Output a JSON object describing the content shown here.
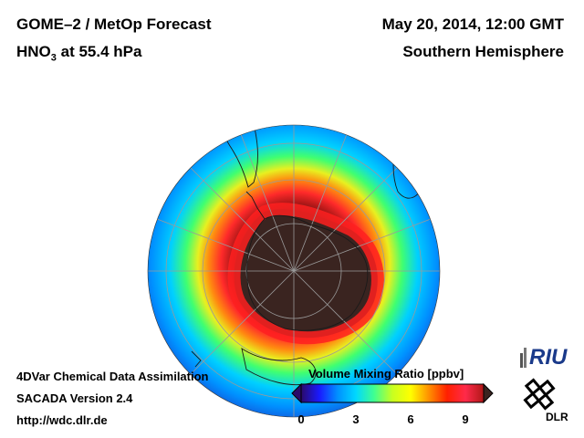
{
  "header": {
    "product": "GOME–2 / MetOp Forecast",
    "species_main": "HNO",
    "species_sub": "3",
    "species_level": " at 55.4 hPa",
    "datetime": "May 20, 2014, 12:00 GMT",
    "region": "Southern Hemisphere"
  },
  "footer": {
    "line1": "4DVar Chemical Data Assimilation",
    "line2": "SACADA Version 2.4",
    "line3": "http://wdc.dlr.de"
  },
  "colorbar": {
    "title": "Volume Mixing Ratio [ppbv]",
    "range": [
      0,
      10
    ],
    "ticks": [
      {
        "value": 0,
        "label": "0"
      },
      {
        "value": 3,
        "label": "3"
      },
      {
        "value": 6,
        "label": "6"
      },
      {
        "value": 9,
        "label": "9"
      }
    ],
    "colors": [
      "#2a0a6a",
      "#1a1aff",
      "#0090ff",
      "#00d8ff",
      "#40ff90",
      "#c8ff20",
      "#ffff00",
      "#ff9000",
      "#ff2000",
      "#ff2a4a",
      "#b01818"
    ]
  },
  "map": {
    "projection": "orthographic",
    "center": "South Pole",
    "field": "HNO3 volume mixing ratio",
    "polar_value_color": "#3a2420"
  },
  "logos": {
    "riu": "RIU",
    "dlr": "DLR"
  }
}
